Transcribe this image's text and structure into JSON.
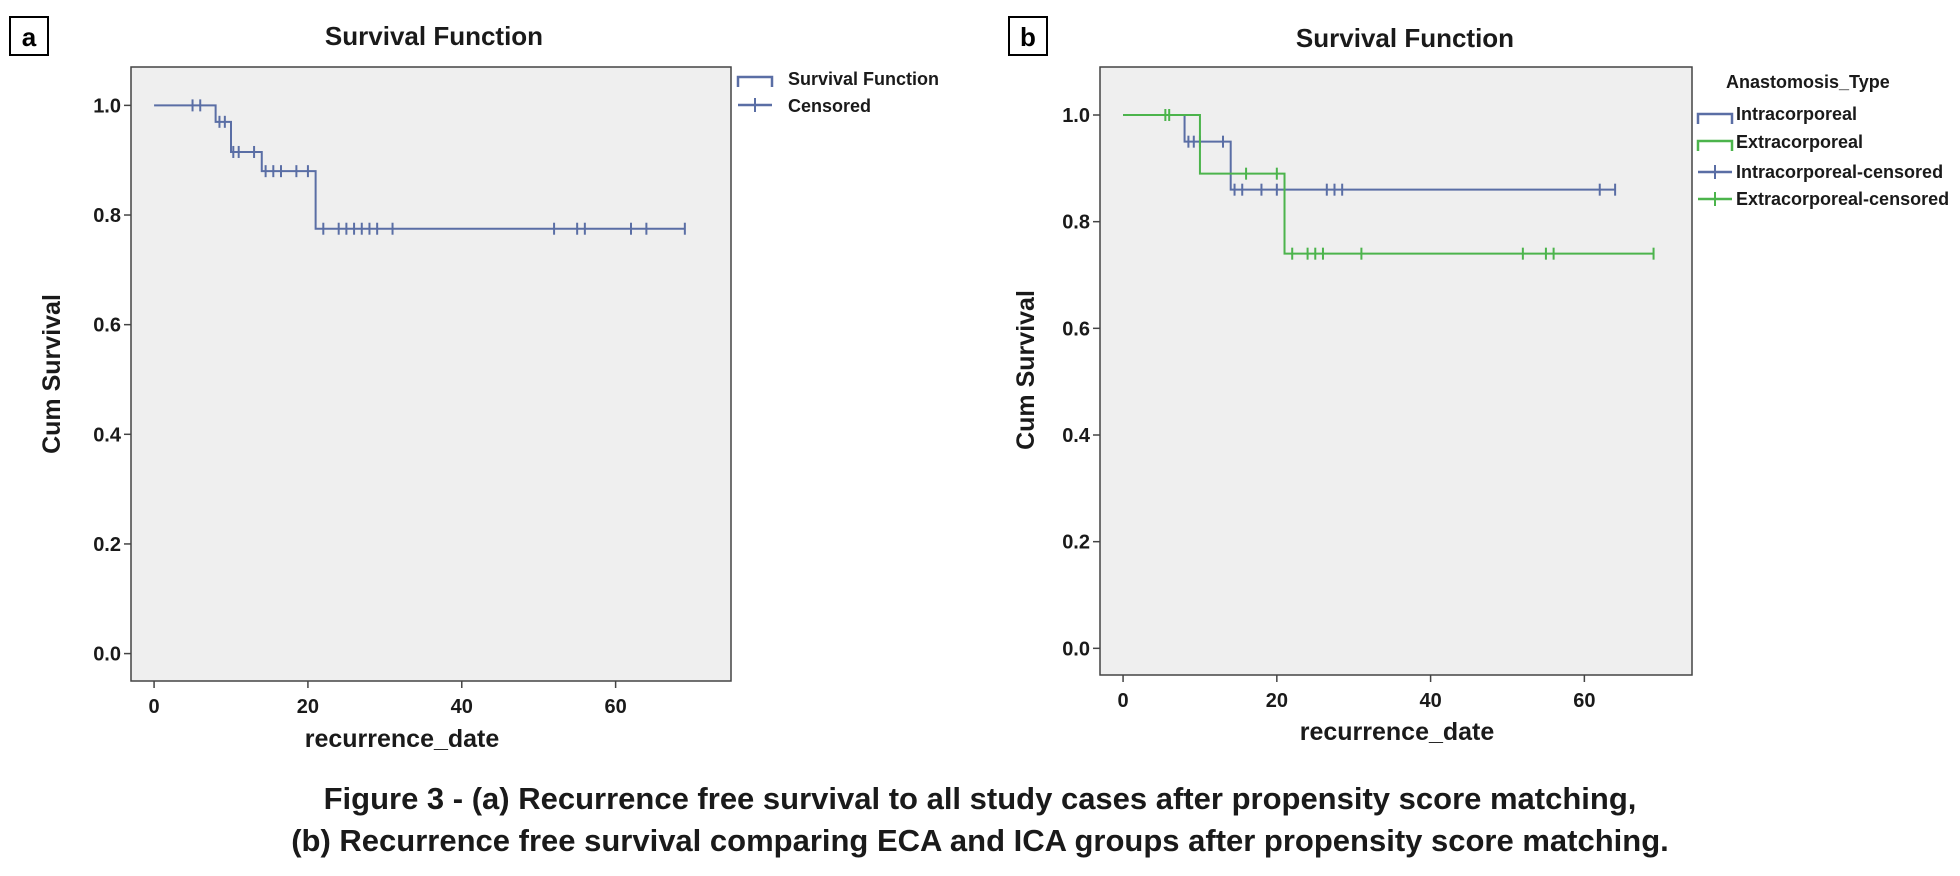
{
  "chart_data": [
    {
      "type": "line",
      "panel_label": "a",
      "title": "Survival Function",
      "xlabel": "recurrence_date",
      "ylabel": "Cum Survival",
      "xlim": [
        -3,
        75
      ],
      "ylim": [
        -0.05,
        1.07
      ],
      "xticks": [
        0,
        20,
        40,
        60
      ],
      "yticks": [
        0.0,
        0.2,
        0.4,
        0.6,
        0.8,
        1.0
      ],
      "grid": false,
      "legend_position": "top-right outside",
      "legend_title": "",
      "legend": [
        "Survival Function",
        "Censored"
      ],
      "series": [
        {
          "name": "Survival Function",
          "color": "#5a6ea5",
          "steps": [
            [
              0,
              1.0
            ],
            [
              8,
              0.97
            ],
            [
              10,
              0.915
            ],
            [
              14,
              0.88
            ],
            [
              21,
              0.775
            ],
            [
              69,
              0.775
            ]
          ],
          "censored": [
            [
              5,
              1.0
            ],
            [
              6,
              1.0
            ],
            [
              8.5,
              0.97
            ],
            [
              9.2,
              0.97
            ],
            [
              10.3,
              0.915
            ],
            [
              11,
              0.915
            ],
            [
              13,
              0.915
            ],
            [
              14.5,
              0.88
            ],
            [
              15.5,
              0.88
            ],
            [
              16.5,
              0.88
            ],
            [
              18.5,
              0.88
            ],
            [
              20,
              0.88
            ],
            [
              22,
              0.775
            ],
            [
              24,
              0.775
            ],
            [
              25,
              0.775
            ],
            [
              26,
              0.775
            ],
            [
              27,
              0.775
            ],
            [
              28,
              0.775
            ],
            [
              29,
              0.775
            ],
            [
              31,
              0.775
            ],
            [
              52,
              0.775
            ],
            [
              55,
              0.775
            ],
            [
              56,
              0.775
            ],
            [
              62,
              0.775
            ],
            [
              64,
              0.775
            ],
            [
              69,
              0.775
            ]
          ]
        }
      ]
    },
    {
      "type": "line",
      "panel_label": "b",
      "title": "Survival Function",
      "xlabel": "recurrence_date",
      "ylabel": "Cum Survival",
      "xlim": [
        -3,
        74
      ],
      "ylim": [
        -0.05,
        1.09
      ],
      "xticks": [
        0,
        20,
        40,
        60
      ],
      "yticks": [
        0.0,
        0.2,
        0.4,
        0.6,
        0.8,
        1.0
      ],
      "grid": false,
      "legend_position": "top-right outside",
      "legend_title": "Anastomosis_Type",
      "legend": [
        "Intracorporeal",
        "Extracorporeal",
        "Intracorporeal-censored",
        "Extracorporeal-censored"
      ],
      "series": [
        {
          "name": "Intracorporeal",
          "color": "#5a6ea5",
          "steps": [
            [
              0,
              1.0
            ],
            [
              8,
              0.95
            ],
            [
              14,
              0.86
            ],
            [
              64,
              0.86
            ]
          ],
          "censored": [
            [
              8.5,
              0.95
            ],
            [
              9.2,
              0.95
            ],
            [
              10,
              0.95
            ],
            [
              13,
              0.95
            ],
            [
              14.5,
              0.86
            ],
            [
              15.5,
              0.86
            ],
            [
              18,
              0.86
            ],
            [
              20,
              0.86
            ],
            [
              26.5,
              0.86
            ],
            [
              27.5,
              0.86
            ],
            [
              28.5,
              0.86
            ],
            [
              62,
              0.86
            ],
            [
              64,
              0.86
            ]
          ]
        },
        {
          "name": "Extracorporeal",
          "color": "#4cb44c",
          "steps": [
            [
              0,
              1.0
            ],
            [
              10,
              0.89
            ],
            [
              21,
              0.74
            ],
            [
              69,
              0.74
            ]
          ],
          "censored": [
            [
              5.5,
              1.0
            ],
            [
              6,
              1.0
            ],
            [
              16,
              0.89
            ],
            [
              20,
              0.89
            ],
            [
              22,
              0.74
            ],
            [
              24,
              0.74
            ],
            [
              25,
              0.74
            ],
            [
              26,
              0.74
            ],
            [
              31,
              0.74
            ],
            [
              52,
              0.74
            ],
            [
              55,
              0.74
            ],
            [
              56,
              0.74
            ],
            [
              69,
              0.74
            ]
          ]
        }
      ]
    }
  ],
  "caption": {
    "line1": "Figure 3 - (a) Recurrence free survival to all study cases after propensity score matching,",
    "line2": "(b) Recurrence free survival comparing ECA and ICA groups after propensity score matching."
  }
}
